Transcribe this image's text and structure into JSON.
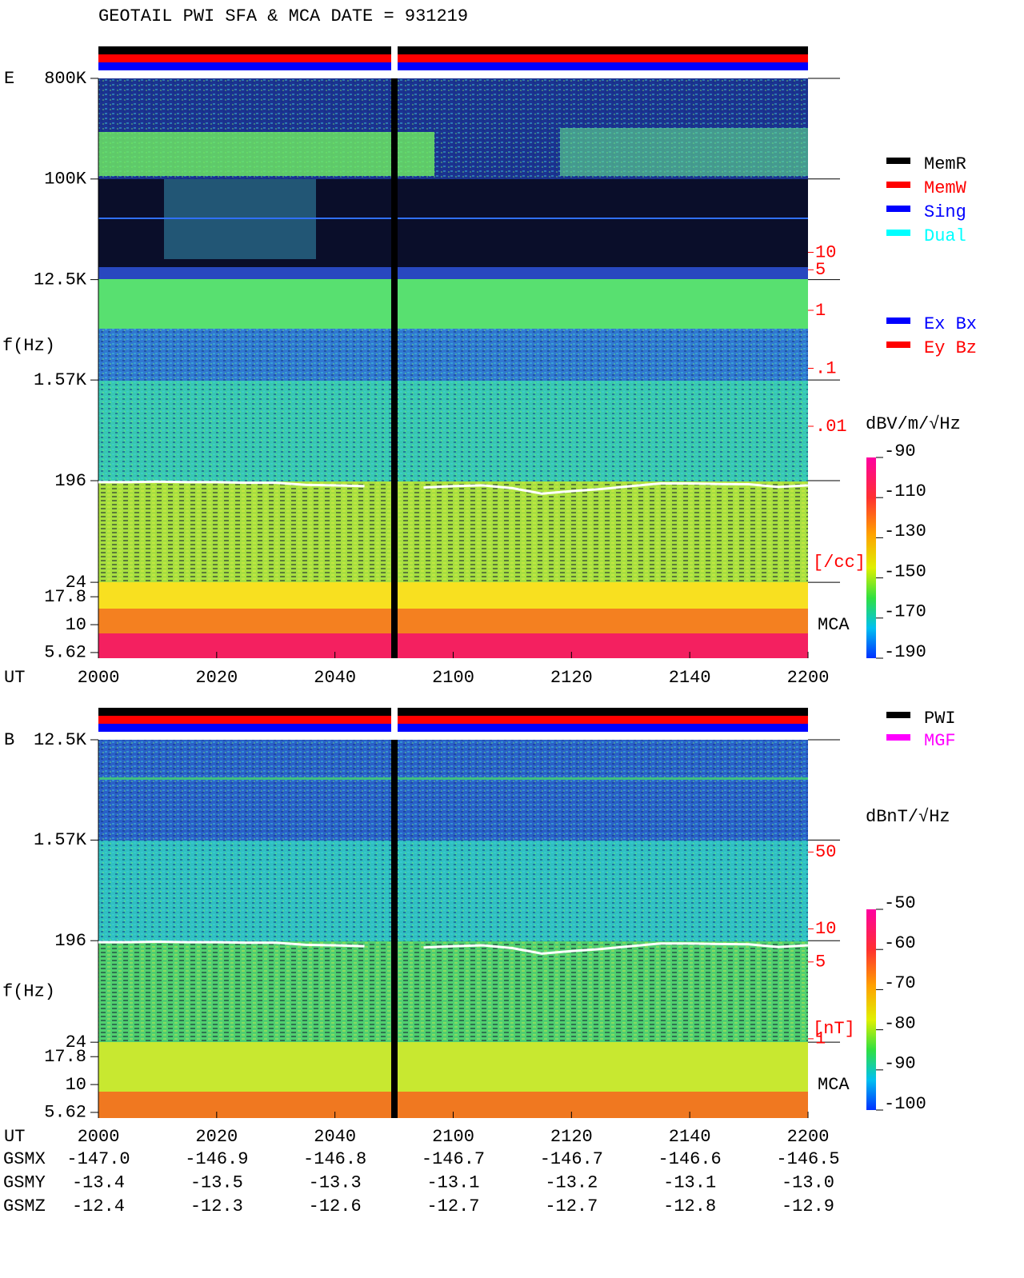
{
  "title": "GEOTAIL  PWI SFA & MCA   DATE = 931219",
  "chart_data": [
    {
      "type": "spectrogram",
      "panel_label": "E",
      "ylabel": "f(Hz)",
      "xlabel": "UT",
      "yscale": "log",
      "ylim": [
        5,
        800000
      ],
      "yticks": [
        {
          "value": 800000,
          "label": "800K"
        },
        {
          "value": 100000,
          "label": "100K"
        },
        {
          "value": 12500,
          "label": "12.5K"
        },
        {
          "value": 1570,
          "label": "1.57K"
        },
        196,
        24,
        17.8,
        10,
        5.62
      ],
      "xticklabels": [
        "2000",
        "2020",
        "2040",
        "2100",
        "2120",
        "2140",
        "2200"
      ],
      "mca_label": "MCA",
      "y2label": "[/cc]",
      "y2scale": "log",
      "y2lim": [
        1e-06,
        10000
      ],
      "y2ticks": [
        10,
        5,
        1,
        {
          "value": 0.1,
          "label": ".1"
        },
        {
          "value": 0.01,
          "label": ".01"
        }
      ],
      "colorbar": {
        "label": "dBV/m/√Hz",
        "lim": [
          -190,
          -90
        ],
        "ticks": [
          -90,
          -110,
          -130,
          -150,
          -170,
          -190
        ]
      },
      "legends": [
        [
          {
            "name": "MemR",
            "color": "#000000"
          },
          {
            "name": "MemW",
            "color": "#ff0000"
          },
          {
            "name": "Sing",
            "color": "#0000ff"
          },
          {
            "name": "Dual",
            "color": "#00ffff"
          }
        ],
        [
          {
            "name": "Ex Bx",
            "color": "#0000ff"
          },
          {
            "name": "Ey Bz",
            "color": "#ff0000"
          }
        ]
      ],
      "line": {
        "color": "#ffffff",
        "values": [
          190,
          190,
          192,
          190,
          190,
          188,
          188,
          180,
          178,
          175,
          null,
          170,
          175,
          178,
          168,
          150,
          158,
          165,
          175,
          185,
          185,
          183,
          182,
          172,
          178
        ]
      }
    },
    {
      "type": "spectrogram",
      "panel_label": "B",
      "ylabel": "f(Hz)",
      "xlabel": "UT",
      "yscale": "log",
      "ylim": [
        5,
        12500
      ],
      "yticks": [
        {
          "value": 12500,
          "label": "12.5K"
        },
        {
          "value": 1570,
          "label": "1.57K"
        },
        196,
        24,
        17.8,
        10,
        5.62
      ],
      "xticklabels": [
        "2000",
        "2020",
        "2040",
        "2100",
        "2120",
        "2140",
        "2200"
      ],
      "mca_label": "MCA",
      "y2label": "[nT]",
      "y2scale": "log",
      "y2lim": [
        0.19,
        525
      ],
      "y2ticks": [
        50,
        10,
        5,
        1
      ],
      "colorbar": {
        "label": "dBnT/√Hz",
        "lim": [
          -100,
          -50
        ],
        "ticks": [
          -50,
          -60,
          -70,
          -80,
          -90,
          -100
        ]
      },
      "legends": [
        [
          {
            "name": "PWI",
            "color": "#000000"
          },
          {
            "name": "MGF",
            "color": "#ff00ff"
          }
        ]
      ],
      "line": {
        "color": "#ffffff",
        "values": [
          190,
          190,
          192,
          190,
          190,
          188,
          188,
          180,
          178,
          175,
          null,
          170,
          175,
          178,
          168,
          150,
          158,
          165,
          175,
          185,
          185,
          183,
          182,
          172,
          178
        ]
      }
    }
  ],
  "orbit": {
    "labels": [
      "GSMX",
      "GSMY",
      "GSMZ"
    ],
    "rows": [
      [
        "-147.0",
        "-146.9",
        "-146.8",
        "-146.7",
        "-146.7",
        "-146.6",
        "-146.5"
      ],
      [
        "-13.4",
        "-13.5",
        "-13.3",
        "-13.1",
        "-13.2",
        "-13.1",
        "-13.0"
      ],
      [
        "-12.4",
        "-12.3",
        "-12.6",
        "-12.7",
        "-12.7",
        "-12.8",
        "-12.9"
      ]
    ]
  }
}
